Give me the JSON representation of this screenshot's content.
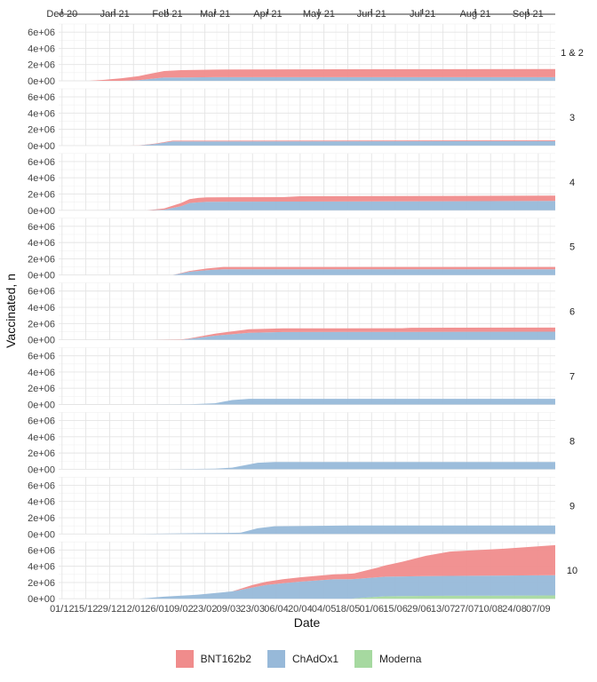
{
  "chart_data": {
    "type": "area",
    "ylabel": "Vaccinated, n",
    "xlabel": "Date",
    "top_axis_labels": [
      "Dec 20",
      "Jan 21",
      "Feb 21",
      "Mar 21",
      "Apr 21",
      "May 21",
      "Jun 21",
      "Jul 21",
      "Aug 21",
      "Sep 21"
    ],
    "bottom_axis_labels": [
      "01/12",
      "15/12",
      "29/12",
      "12/01",
      "26/01",
      "09/02",
      "23/02",
      "09/03",
      "23/03",
      "06/04",
      "20/04",
      "04/05",
      "18/05",
      "01/06",
      "15/06",
      "29/06",
      "13/07",
      "27/07",
      "10/08",
      "24/08",
      "07/09"
    ],
    "y_tick_labels": [
      "0e+00",
      "2e+06",
      "4e+06",
      "6e+06"
    ],
    "y_ticks": [
      0,
      2000000,
      4000000,
      6000000
    ],
    "ylim": [
      0,
      7000000
    ],
    "x_range_days": [
      -2,
      290
    ],
    "date_origin": "01/12/2020",
    "stack_order": [
      "Moderna",
      "ChAdOx1",
      "BNT162b2"
    ],
    "series_names": [
      "BNT162b2",
      "ChAdOx1",
      "Moderna"
    ],
    "colors": {
      "BNT162b2": "#F08C8C",
      "ChAdOx1": "#97B9D9",
      "Moderna": "#A6D9A0"
    },
    "grid": true,
    "legend_position": "bottom",
    "facets": [
      {
        "label": "1 & 2",
        "series": [
          {
            "name": "BNT162b2",
            "points": [
              [
                16,
                0
              ],
              [
                25,
                120000
              ],
              [
                50,
                600000
              ],
              [
                60,
                800000
              ],
              [
                70,
                900000
              ],
              [
                100,
                950000
              ],
              [
                290,
                1000000
              ]
            ]
          },
          {
            "name": "ChAdOx1",
            "points": [
              [
                16,
                0
              ],
              [
                35,
                0
              ],
              [
                45,
                80000
              ],
              [
                60,
                400000
              ],
              [
                90,
                450000
              ],
              [
                290,
                450000
              ]
            ]
          },
          {
            "name": "Moderna",
            "points": [
              [
                16,
                0
              ],
              [
                290,
                0
              ]
            ]
          }
        ]
      },
      {
        "label": "3",
        "series": [
          {
            "name": "BNT162b2",
            "points": [
              [
                20,
                0
              ],
              [
                40,
                0
              ],
              [
                55,
                50000
              ],
              [
                65,
                100000
              ],
              [
                290,
                100000
              ]
            ]
          },
          {
            "name": "ChAdOx1",
            "points": [
              [
                20,
                0
              ],
              [
                45,
                0
              ],
              [
                55,
                200000
              ],
              [
                65,
                500000
              ],
              [
                290,
                550000
              ]
            ]
          },
          {
            "name": "Moderna",
            "points": [
              [
                20,
                0
              ],
              [
                290,
                0
              ]
            ]
          }
        ]
      },
      {
        "label": "4",
        "series": [
          {
            "name": "BNT162b2",
            "points": [
              [
                50,
                0
              ],
              [
                60,
                150000
              ],
              [
                70,
                400000
              ],
              [
                80,
                550000
              ],
              [
                130,
                550000
              ],
              [
                140,
                650000
              ],
              [
                290,
                650000
              ]
            ]
          },
          {
            "name": "ChAdOx1",
            "points": [
              [
                50,
                0
              ],
              [
                60,
                80000
              ],
              [
                70,
                500000
              ],
              [
                75,
                900000
              ],
              [
                85,
                1050000
              ],
              [
                290,
                1150000
              ]
            ]
          },
          {
            "name": "Moderna",
            "points": [
              [
                50,
                0
              ],
              [
                290,
                0
              ]
            ]
          }
        ]
      },
      {
        "label": "5",
        "series": [
          {
            "name": "BNT162b2",
            "points": [
              [
                50,
                0
              ],
              [
                65,
                0
              ],
              [
                80,
                150000
              ],
              [
                95,
                300000
              ],
              [
                290,
                300000
              ]
            ]
          },
          {
            "name": "ChAdOx1",
            "points": [
              [
                50,
                0
              ],
              [
                65,
                0
              ],
              [
                75,
                400000
              ],
              [
                85,
                600000
              ],
              [
                95,
                700000
              ],
              [
                290,
                700000
              ]
            ]
          },
          {
            "name": "Moderna",
            "points": [
              [
                50,
                0
              ],
              [
                290,
                0
              ]
            ]
          }
        ]
      },
      {
        "label": "6",
        "series": [
          {
            "name": "BNT162b2",
            "points": [
              [
                53,
                0
              ],
              [
                75,
                50000
              ],
              [
                90,
                250000
              ],
              [
                110,
                450000
              ],
              [
                200,
                450000
              ],
              [
                205,
                500000
              ],
              [
                290,
                500000
              ]
            ]
          },
          {
            "name": "ChAdOx1",
            "points": [
              [
                53,
                0
              ],
              [
                70,
                0
              ],
              [
                90,
                500000
              ],
              [
                110,
                850000
              ],
              [
                130,
                950000
              ],
              [
                290,
                1000000
              ]
            ]
          },
          {
            "name": "Moderna",
            "points": [
              [
                53,
                0
              ],
              [
                290,
                0
              ]
            ]
          }
        ]
      },
      {
        "label": "7",
        "series": [
          {
            "name": "BNT162b2",
            "points": [
              [
                48,
                0
              ],
              [
                290,
                0
              ]
            ]
          },
          {
            "name": "ChAdOx1",
            "points": [
              [
                48,
                0
              ],
              [
                75,
                20000
              ],
              [
                90,
                150000
              ],
              [
                100,
                550000
              ],
              [
                110,
                700000
              ],
              [
                290,
                700000
              ]
            ]
          },
          {
            "name": "Moderna",
            "points": [
              [
                48,
                0
              ],
              [
                290,
                0
              ]
            ]
          }
        ]
      },
      {
        "label": "8",
        "series": [
          {
            "name": "BNT162b2",
            "points": [
              [
                62,
                0
              ],
              [
                290,
                0
              ]
            ]
          },
          {
            "name": "ChAdOx1",
            "points": [
              [
                62,
                0
              ],
              [
                90,
                80000
              ],
              [
                100,
                200000
              ],
              [
                115,
                800000
              ],
              [
                125,
                900000
              ],
              [
                290,
                900000
              ]
            ]
          },
          {
            "name": "Moderna",
            "points": [
              [
                62,
                0
              ],
              [
                290,
                0
              ]
            ]
          }
        ]
      },
      {
        "label": "9",
        "series": [
          {
            "name": "BNT162b2",
            "points": [
              [
                44,
                0
              ],
              [
                290,
                0
              ]
            ]
          },
          {
            "name": "ChAdOx1",
            "points": [
              [
                44,
                0
              ],
              [
                80,
                100000
              ],
              [
                105,
                150000
              ],
              [
                115,
                700000
              ],
              [
                125,
                950000
              ],
              [
                170,
                1050000
              ],
              [
                290,
                1050000
              ]
            ]
          },
          {
            "name": "Moderna",
            "points": [
              [
                44,
                0
              ],
              [
                290,
                0
              ]
            ]
          }
        ]
      },
      {
        "label": "10",
        "series": [
          {
            "name": "BNT162b2",
            "points": [
              [
                45,
                0
              ],
              [
                75,
                0
              ],
              [
                100,
                0
              ],
              [
                112,
                300000
              ],
              [
                130,
                500000
              ],
              [
                160,
                600000
              ],
              [
                172,
                700000
              ],
              [
                186,
                1200000
              ],
              [
                200,
                1800000
              ],
              [
                214,
                2500000
              ],
              [
                228,
                3000000
              ],
              [
                260,
                3300000
              ],
              [
                290,
                3700000
              ]
            ]
          },
          {
            "name": "ChAdOx1",
            "points": [
              [
                45,
                0
              ],
              [
                60,
                250000
              ],
              [
                80,
                500000
              ],
              [
                100,
                900000
              ],
              [
                120,
                1700000
              ],
              [
                140,
                2100000
              ],
              [
                160,
                2400000
              ],
              [
                172,
                2400000
              ],
              [
                290,
                2500000
              ]
            ]
          },
          {
            "name": "Moderna",
            "points": [
              [
                45,
                0
              ],
              [
                170,
                0
              ],
              [
                190,
                300000
              ],
              [
                214,
                350000
              ],
              [
                290,
                400000
              ]
            ]
          }
        ]
      }
    ]
  }
}
